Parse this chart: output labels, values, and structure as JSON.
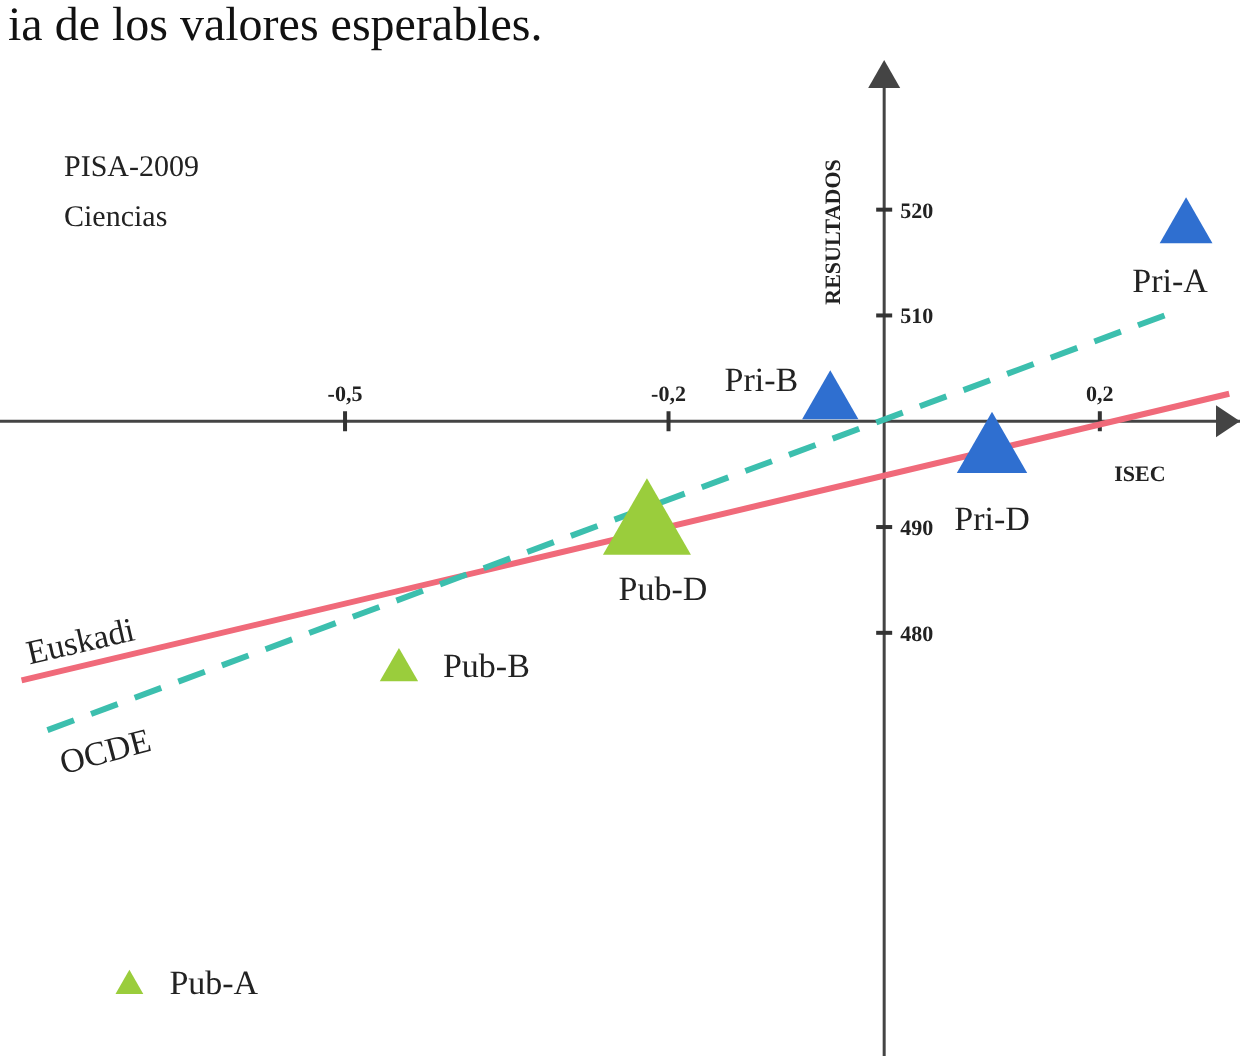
{
  "chart_data": {
    "type": "bubble",
    "title": "PISA-2009",
    "subtitle": "Ciencias",
    "xlabel": "ISEC",
    "ylabel": "RESULTADOS",
    "annotations": [
      "ia de los valores esperables.",
      {
        "text": "Pub-A",
        "x": -0.7,
        "y": 447
      },
      {
        "text": "Pub-B",
        "x": -0.45,
        "y": 477
      },
      {
        "text": "Pub-D",
        "x": -0.22,
        "y": 491
      },
      {
        "text": "Pri-B",
        "x": -0.05,
        "y": 502.5
      },
      {
        "text": "Pri-D",
        "x": 0.1,
        "y": 498
      },
      {
        "text": "Pri-A",
        "x": 0.28,
        "y": 519
      }
    ],
    "xlim": [
      -0.82,
      0.33
    ],
    "ylim": [
      440,
      531.5
    ],
    "xticks": [
      {
        "value": -0.5,
        "label": "-0,5"
      },
      {
        "value": -0.2,
        "label": "-0,2"
      },
      {
        "value": 0,
        "label": null
      },
      {
        "value": 0.2,
        "label": "0,2"
      }
    ],
    "yticks": [
      480,
      490,
      {
        "value": 500,
        "label": null
      },
      510,
      520
    ],
    "series": [
      {
        "name": "Euskadi",
        "type": "line",
        "color": "#f06a7a",
        "line_style": "solid",
        "x": [
          -0.8,
          0.32
        ],
        "values": [
          475.5,
          502.6
        ]
      },
      {
        "name": "OCDE",
        "type": "line",
        "color": "#3cbfae",
        "line_style": "dashed",
        "x": [
          -0.776,
          0.26
        ],
        "values": [
          470.8,
          510
        ]
      },
      {
        "marker": "triangle",
        "color": "#9acd3c",
        "x": [
          -0.7,
          -0.45,
          -0.22
        ],
        "values": [
          447,
          477,
          491
        ],
        "sizes": [
          0.1,
          0.19,
          1
        ]
      },
      {
        "marker": "triangle",
        "color": "#2f6fd0",
        "x": [
          -0.05,
          0.1,
          0.28
        ],
        "values": [
          502.5,
          498,
          519
        ],
        "sizes": [
          0.41,
          0.64,
          0.36
        ]
      }
    ]
  }
}
